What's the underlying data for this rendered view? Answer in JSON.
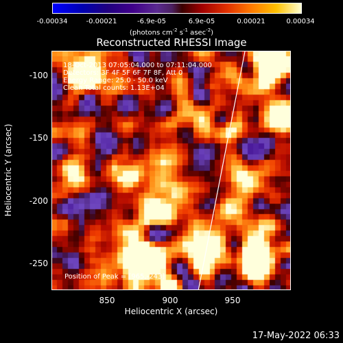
{
  "colorbar": {
    "ticks": [
      "-0.00034",
      "-0.00021",
      "-6.9e-05",
      "6.9e-05",
      "0.00021",
      "0.00034"
    ],
    "units_prefix": "(photons cm",
    "units_sup1": "-2",
    "units_mid1": " s",
    "units_sup2": "-1",
    "units_mid2": " asec",
    "units_sup3": "-2",
    "units_suffix": ")"
  },
  "title": "Reconstructed RHESSI Image",
  "info": {
    "time_range": "18-Oct-2013 07:05:04.000 to 07:11:04.000",
    "detectors": "Detectors: 3F 4F 5F 6F 7F 8F, Att 0",
    "energy": "Energy Range: 25.0 - 50.0 keV",
    "clean": "Clean    Total counts: 1.13E+04",
    "peak": "Position of Peak = [965,-243]"
  },
  "axes": {
    "xlabel": "Heliocentric X (arcsec)",
    "ylabel": "Heliocentric Y (arcsec)",
    "xticks": [
      "850",
      "900",
      "950"
    ],
    "yticks": [
      "-100",
      "-150",
      "-200",
      "-250"
    ]
  },
  "footer_date": "17-May-2022 06:33"
}
